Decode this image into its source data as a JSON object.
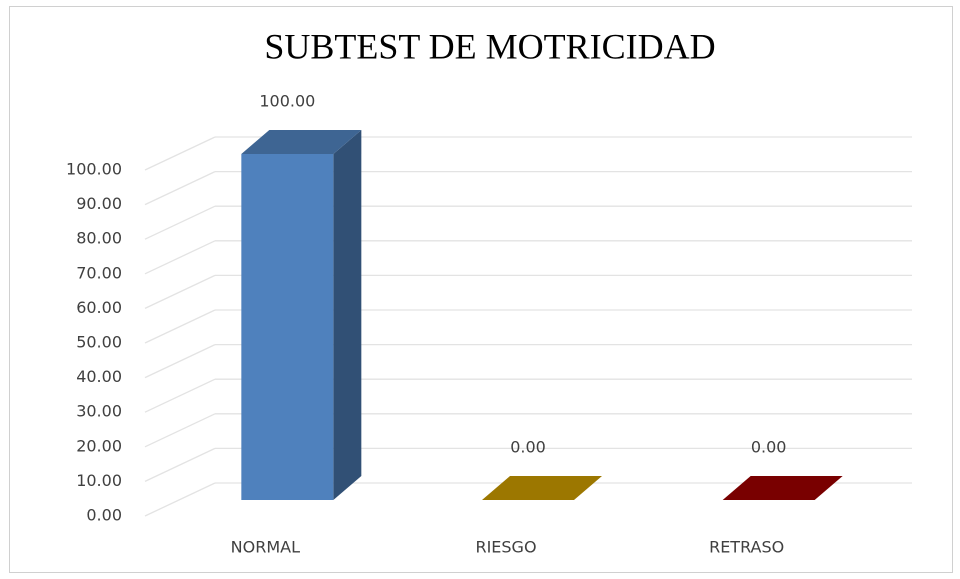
{
  "chart_data": {
    "type": "bar3d",
    "title": "SUBTEST DE MOTRICIDAD",
    "categories": [
      "NORMAL",
      "RIESGO",
      "RETRASO"
    ],
    "values": [
      100,
      0,
      0
    ],
    "value_labels": [
      "100.00",
      "0.00",
      "0.00"
    ],
    "colors": [
      "#4f81bd",
      "#c89800",
      "#9b0000"
    ],
    "ylim": [
      0,
      100
    ],
    "yticks": [
      {
        "value": 0,
        "label": "0.00"
      },
      {
        "value": 10,
        "label": "10.00"
      },
      {
        "value": 20,
        "label": "20.00"
      },
      {
        "value": 30,
        "label": "30.00"
      },
      {
        "value": 40,
        "label": "40.00"
      },
      {
        "value": 50,
        "label": "50.00"
      },
      {
        "value": 60,
        "label": "60.00"
      },
      {
        "value": 70,
        "label": "70.00"
      },
      {
        "value": 80,
        "label": "80.00"
      },
      {
        "value": 90,
        "label": "90.00"
      },
      {
        "value": 100,
        "label": "100.00"
      }
    ],
    "grid": true
  }
}
